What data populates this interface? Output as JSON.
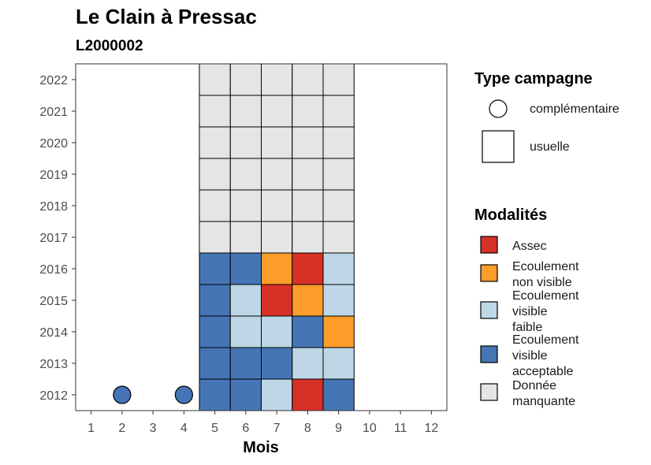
{
  "chart_data": {
    "type": "heatmap",
    "title": "Le Clain à Pressac",
    "subtitle": "L2000002",
    "xlabel": "Mois",
    "ylabel": "",
    "x_ticks": [
      "1",
      "2",
      "3",
      "4",
      "5",
      "6",
      "7",
      "8",
      "9",
      "10",
      "11",
      "12"
    ],
    "y_ticks": [
      "2012",
      "2013",
      "2014",
      "2015",
      "2016",
      "2017",
      "2018",
      "2019",
      "2020",
      "2021",
      "2022"
    ],
    "xlim": [
      0.5,
      12.5
    ],
    "ylim": [
      2011.5,
      2022.5
    ],
    "grid": false,
    "legend_position": "right",
    "legend_shape": {
      "title": "Type campagne",
      "items": [
        {
          "key": "complementaire",
          "label": "complémentaire",
          "shape": "circle"
        },
        {
          "key": "usuelle",
          "label": "usuelle",
          "shape": "square"
        }
      ]
    },
    "legend_fill": {
      "title": "Modalités",
      "items": [
        {
          "key": "assec",
          "lines": [
            "Assec"
          ],
          "color": "#d73027"
        },
        {
          "key": "nonvisible",
          "lines": [
            "Ecoulement",
            "non visible"
          ],
          "color": "#fc9d2a"
        },
        {
          "key": "faible",
          "lines": [
            "Ecoulement",
            "visible",
            "faible"
          ],
          "color": "#bdd7e7"
        },
        {
          "key": "acceptable",
          "lines": [
            "Ecoulement",
            "visible",
            "acceptable"
          ],
          "color": "#4575b4"
        },
        {
          "key": "manquante",
          "lines": [
            "Donnée",
            "manquante"
          ],
          "color": "#e5e5e5"
        }
      ]
    },
    "points": [
      {
        "month": 2,
        "year": 2012,
        "value": "acceptable",
        "type": "complementaire"
      },
      {
        "month": 4,
        "year": 2012,
        "value": "acceptable",
        "type": "complementaire"
      },
      {
        "month": 5,
        "year": 2012,
        "value": "acceptable",
        "type": "usuelle"
      },
      {
        "month": 6,
        "year": 2012,
        "value": "acceptable",
        "type": "usuelle"
      },
      {
        "month": 7,
        "year": 2012,
        "value": "faible",
        "type": "usuelle"
      },
      {
        "month": 8,
        "year": 2012,
        "value": "assec",
        "type": "usuelle"
      },
      {
        "month": 9,
        "year": 2012,
        "value": "acceptable",
        "type": "usuelle"
      },
      {
        "month": 5,
        "year": 2013,
        "value": "acceptable",
        "type": "usuelle"
      },
      {
        "month": 6,
        "year": 2013,
        "value": "acceptable",
        "type": "usuelle"
      },
      {
        "month": 7,
        "year": 2013,
        "value": "acceptable",
        "type": "usuelle"
      },
      {
        "month": 8,
        "year": 2013,
        "value": "faible",
        "type": "usuelle"
      },
      {
        "month": 9,
        "year": 2013,
        "value": "faible",
        "type": "usuelle"
      },
      {
        "month": 5,
        "year": 2014,
        "value": "acceptable",
        "type": "usuelle"
      },
      {
        "month": 6,
        "year": 2014,
        "value": "faible",
        "type": "usuelle"
      },
      {
        "month": 7,
        "year": 2014,
        "value": "faible",
        "type": "usuelle"
      },
      {
        "month": 8,
        "year": 2014,
        "value": "acceptable",
        "type": "usuelle"
      },
      {
        "month": 9,
        "year": 2014,
        "value": "nonvisible",
        "type": "usuelle"
      },
      {
        "month": 5,
        "year": 2015,
        "value": "acceptable",
        "type": "usuelle"
      },
      {
        "month": 6,
        "year": 2015,
        "value": "faible",
        "type": "usuelle"
      },
      {
        "month": 7,
        "year": 2015,
        "value": "assec",
        "type": "usuelle"
      },
      {
        "month": 8,
        "year": 2015,
        "value": "nonvisible",
        "type": "usuelle"
      },
      {
        "month": 9,
        "year": 2015,
        "value": "faible",
        "type": "usuelle"
      },
      {
        "month": 5,
        "year": 2016,
        "value": "acceptable",
        "type": "usuelle"
      },
      {
        "month": 6,
        "year": 2016,
        "value": "acceptable",
        "type": "usuelle"
      },
      {
        "month": 7,
        "year": 2016,
        "value": "nonvisible",
        "type": "usuelle"
      },
      {
        "month": 8,
        "year": 2016,
        "value": "assec",
        "type": "usuelle"
      },
      {
        "month": 9,
        "year": 2016,
        "value": "faible",
        "type": "usuelle"
      },
      {
        "month": 5,
        "year": 2017,
        "value": "manquante",
        "type": "usuelle"
      },
      {
        "month": 6,
        "year": 2017,
        "value": "manquante",
        "type": "usuelle"
      },
      {
        "month": 7,
        "year": 2017,
        "value": "manquante",
        "type": "usuelle"
      },
      {
        "month": 8,
        "year": 2017,
        "value": "manquante",
        "type": "usuelle"
      },
      {
        "month": 9,
        "year": 2017,
        "value": "manquante",
        "type": "usuelle"
      },
      {
        "month": 5,
        "year": 2018,
        "value": "manquante",
        "type": "usuelle"
      },
      {
        "month": 6,
        "year": 2018,
        "value": "manquante",
        "type": "usuelle"
      },
      {
        "month": 7,
        "year": 2018,
        "value": "manquante",
        "type": "usuelle"
      },
      {
        "month": 8,
        "year": 2018,
        "value": "manquante",
        "type": "usuelle"
      },
      {
        "month": 9,
        "year": 2018,
        "value": "manquante",
        "type": "usuelle"
      },
      {
        "month": 5,
        "year": 2019,
        "value": "manquante",
        "type": "usuelle"
      },
      {
        "month": 6,
        "year": 2019,
        "value": "manquante",
        "type": "usuelle"
      },
      {
        "month": 7,
        "year": 2019,
        "value": "manquante",
        "type": "usuelle"
      },
      {
        "month": 8,
        "year": 2019,
        "value": "manquante",
        "type": "usuelle"
      },
      {
        "month": 9,
        "year": 2019,
        "value": "manquante",
        "type": "usuelle"
      },
      {
        "month": 5,
        "year": 2020,
        "value": "manquante",
        "type": "usuelle"
      },
      {
        "month": 6,
        "year": 2020,
        "value": "manquante",
        "type": "usuelle"
      },
      {
        "month": 7,
        "year": 2020,
        "value": "manquante",
        "type": "usuelle"
      },
      {
        "month": 8,
        "year": 2020,
        "value": "manquante",
        "type": "usuelle"
      },
      {
        "month": 9,
        "year": 2020,
        "value": "manquante",
        "type": "usuelle"
      },
      {
        "month": 5,
        "year": 2021,
        "value": "manquante",
        "type": "usuelle"
      },
      {
        "month": 6,
        "year": 2021,
        "value": "manquante",
        "type": "usuelle"
      },
      {
        "month": 7,
        "year": 2021,
        "value": "manquante",
        "type": "usuelle"
      },
      {
        "month": 8,
        "year": 2021,
        "value": "manquante",
        "type": "usuelle"
      },
      {
        "month": 9,
        "year": 2021,
        "value": "manquante",
        "type": "usuelle"
      },
      {
        "month": 5,
        "year": 2022,
        "value": "manquante",
        "type": "usuelle"
      },
      {
        "month": 6,
        "year": 2022,
        "value": "manquante",
        "type": "usuelle"
      },
      {
        "month": 7,
        "year": 2022,
        "value": "manquante",
        "type": "usuelle"
      },
      {
        "month": 8,
        "year": 2022,
        "value": "manquante",
        "type": "usuelle"
      },
      {
        "month": 9,
        "year": 2022,
        "value": "manquante",
        "type": "usuelle"
      }
    ]
  }
}
